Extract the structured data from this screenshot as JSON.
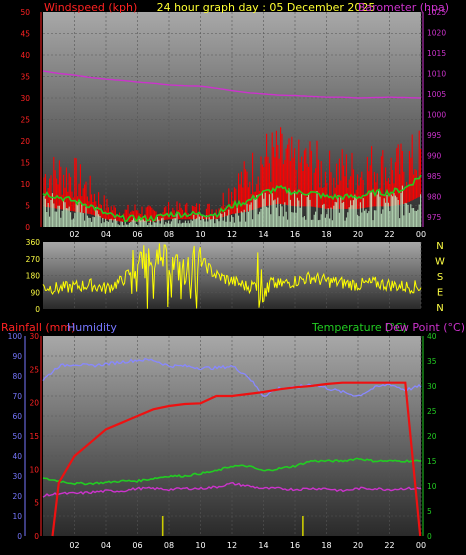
{
  "header": {
    "left_title": "Windspeed (kph)",
    "center_title": "24 hour graph day : 05 December 2025",
    "right_title": "Barometer (hpa)"
  },
  "mid_header": {
    "rain": "Rainfall (mm)",
    "humidity": "Humidity",
    "temperature": "Temperature (°C)",
    "dewpoint": "Dew Point (°C)"
  },
  "colors": {
    "wind_gust": "#ff0000",
    "wind_avg": "#22cc22",
    "wind_fill": "#c8f0c8",
    "barometer": "#cc33cc",
    "direction": "#ffff00",
    "rain": "#ee1111",
    "humidity": "#8888ff",
    "temperature": "#22cc22",
    "dewpoint": "#cc33cc",
    "rain_rate": "#cccc00",
    "axis_left": "#ff2222",
    "axis_right": "#cc33cc",
    "axis_green": "#22cc22",
    "axis_blue": "#7777ff"
  },
  "chart_data": [
    {
      "type": "line",
      "name": "wind_and_barometer",
      "x_ticks": [
        "02",
        "04",
        "06",
        "08",
        "10",
        "12",
        "14",
        "16",
        "18",
        "20",
        "22",
        "00"
      ],
      "ylabel": "Windspeed (kph)",
      "ylim": [
        0,
        50
      ],
      "y_ticks": [
        0,
        5,
        10,
        15,
        20,
        25,
        30,
        35,
        40,
        45,
        50
      ],
      "y2label": "Barometer (hpa)",
      "y2lim": [
        972.5,
        1025
      ],
      "y2_ticks": [
        975,
        980,
        985,
        990,
        995,
        1000,
        1005,
        1010,
        1015,
        1020,
        1025
      ],
      "x": [
        0,
        1,
        2,
        3,
        4,
        5,
        6,
        7,
        8,
        9,
        10,
        11,
        12,
        13,
        14,
        15,
        16,
        17,
        18,
        19,
        20,
        21,
        22,
        23,
        24
      ],
      "series": [
        {
          "key": "gust",
          "values": [
            14,
            15,
            14,
            10,
            6,
            4,
            5,
            4,
            5,
            5,
            5,
            5,
            11,
            14,
            19,
            20,
            17,
            18,
            15,
            16,
            15,
            17,
            16,
            17,
            20
          ]
        },
        {
          "key": "avg",
          "values": [
            8,
            7,
            6,
            5,
            3,
            2,
            2,
            2,
            3,
            3,
            3,
            3,
            5,
            6,
            8,
            9,
            8,
            8,
            7,
            7,
            7,
            8,
            8,
            9,
            12
          ]
        },
        {
          "key": "barometer",
          "values": [
            1010.6,
            1010,
            1009.6,
            1009,
            1008.6,
            1008.3,
            1007.9,
            1007.6,
            1007.2,
            1007,
            1006.9,
            1006.4,
            1005.8,
            1005.3,
            1005,
            1004.7,
            1004.6,
            1004.4,
            1004.2,
            1004.2,
            1004,
            1004.1,
            1004.2,
            1004.1,
            1004
          ]
        }
      ]
    },
    {
      "type": "line",
      "name": "wind_direction",
      "x_ticks": [
        "02",
        "04",
        "06",
        "08",
        "10",
        "12",
        "14",
        "16",
        "18",
        "20",
        "22",
        "00"
      ],
      "ylim": [
        0,
        360
      ],
      "y_ticks": [
        0,
        90,
        180,
        270,
        360
      ],
      "compass": [
        "N",
        "W",
        "S",
        "E",
        "N"
      ],
      "x": [
        0,
        1,
        2,
        3,
        4,
        5,
        6,
        7,
        8,
        9,
        10,
        11,
        12,
        13,
        14,
        15,
        16,
        17,
        18,
        19,
        20,
        21,
        22,
        23,
        24
      ],
      "values": [
        120,
        110,
        120,
        130,
        110,
        150,
        240,
        300,
        250,
        200,
        260,
        180,
        150,
        120,
        140,
        130,
        150,
        170,
        150,
        140,
        130,
        140,
        130,
        120,
        120
      ]
    },
    {
      "type": "line",
      "name": "rain_humidity_temperature",
      "x_ticks": [
        "02",
        "04",
        "06",
        "08",
        "10",
        "12",
        "14",
        "16",
        "18",
        "20",
        "22",
        "00"
      ],
      "y_humidity_ticks": [
        0,
        10,
        20,
        30,
        40,
        50,
        60,
        70,
        80,
        90,
        100
      ],
      "y_rain_ticks": [
        0,
        5,
        10,
        15,
        20,
        25,
        30
      ],
      "y_temp_ticks": [
        0,
        5,
        10,
        15,
        20,
        25,
        30,
        35,
        40
      ],
      "ylim_humidity": [
        0,
        100
      ],
      "ylim_rain": [
        0,
        30
      ],
      "ylim_temp": [
        0,
        40
      ],
      "x": [
        0,
        1,
        2,
        3,
        4,
        5,
        6,
        7,
        8,
        9,
        10,
        11,
        12,
        13,
        14,
        15,
        16,
        17,
        18,
        19,
        20,
        21,
        22,
        23,
        24
      ],
      "series": [
        {
          "key": "humidity",
          "axis": "humidity",
          "values": [
            78,
            85,
            86,
            85,
            86,
            87,
            88,
            88,
            85,
            85,
            84,
            84,
            85,
            80,
            70,
            74,
            74,
            76,
            74,
            72,
            70,
            74,
            76,
            73,
            75
          ]
        },
        {
          "key": "rain",
          "axis": "rain",
          "values": [
            0,
            8,
            12,
            14,
            16,
            17,
            18,
            19,
            19.5,
            19.8,
            19.9,
            21,
            21,
            21.3,
            21.6,
            22,
            22.3,
            22.5,
            22.8,
            23,
            23,
            23,
            23,
            23,
            0
          ]
        },
        {
          "key": "temperature",
          "axis": "temp",
          "values": [
            11.5,
            11,
            10.5,
            10.5,
            10.7,
            11,
            11,
            11.5,
            12,
            12,
            12.5,
            13,
            14,
            14,
            13,
            13.5,
            14,
            15,
            15,
            15,
            15.5,
            15,
            15,
            15,
            15
          ]
        },
        {
          "key": "dewpoint",
          "axis": "temp",
          "values": [
            8,
            8.5,
            8.5,
            8.7,
            9,
            9,
            9.5,
            9.5,
            9.3,
            9.5,
            9.5,
            9.8,
            10.5,
            10,
            9.5,
            9.5,
            9.3,
            9.5,
            9.5,
            9,
            9.5,
            9.5,
            9.3,
            9.5,
            9.5
          ]
        }
      ],
      "rain_rate_marks": [
        {
          "x": 7.6,
          "value": 1.2
        },
        {
          "x": 16.5,
          "value": 1.2
        }
      ]
    }
  ]
}
